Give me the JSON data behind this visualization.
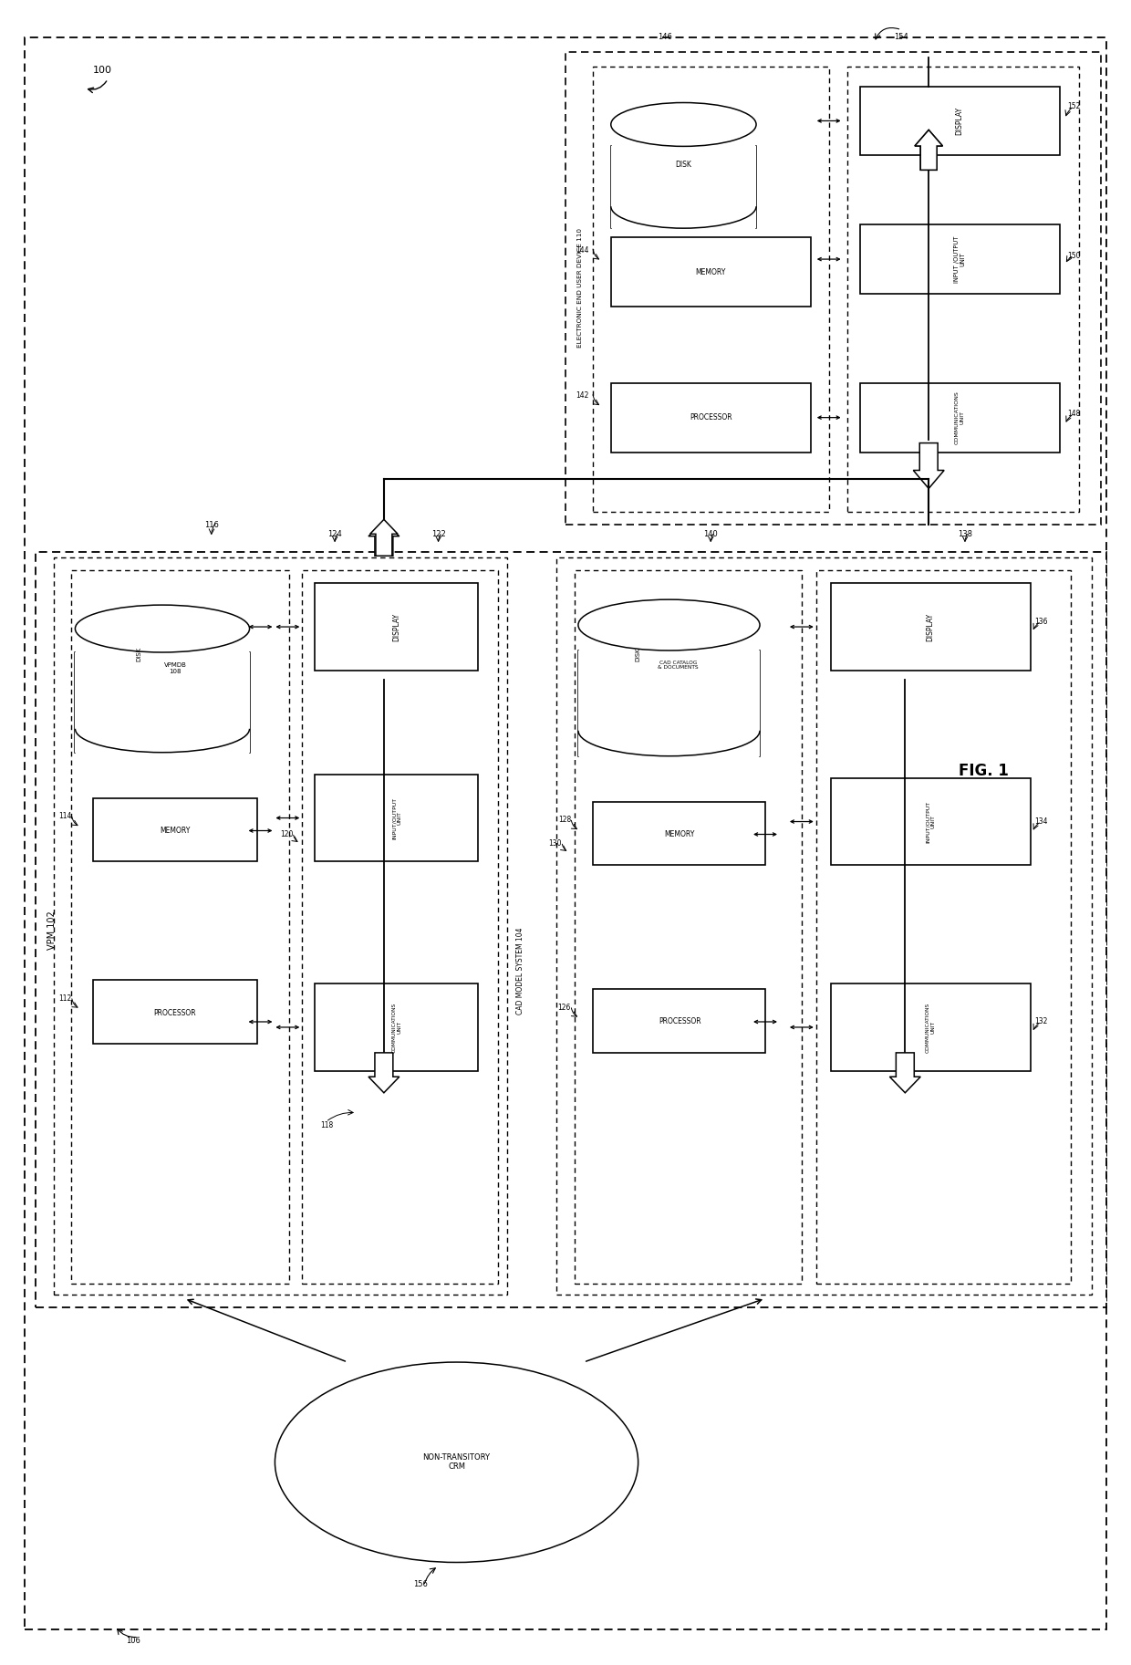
{
  "bg_color": "#ffffff",
  "fig_label": "FIG. 1",
  "ref_100": "100",
  "ref_106": "106",
  "ref_102": "VPM 102",
  "ref_108_disk": "DISK",
  "ref_108_db": "VPMDB\n108",
  "ref_112": "112",
  "ref_114": "114",
  "ref_116": "116",
  "ref_118": "118",
  "ref_120": "120",
  "ref_122": "122",
  "ref_124": "124",
  "ref_104": "CAD MODEL SYSTEM 104",
  "ref_126": "126",
  "ref_128": "128",
  "ref_130": "130",
  "ref_132": "132",
  "ref_134": "134",
  "ref_136": "136",
  "ref_138": "138",
  "ref_140": "140",
  "ref_110": "ELECTRONIC END USER DEVICE 110",
  "ref_142": "142",
  "ref_144": "144",
  "ref_146": "146",
  "ref_148": "148",
  "ref_150": "150",
  "ref_152": "152",
  "ref_154": "154",
  "ref_156": "156",
  "crm_label": "NON-TRANSITORY\nCRM"
}
